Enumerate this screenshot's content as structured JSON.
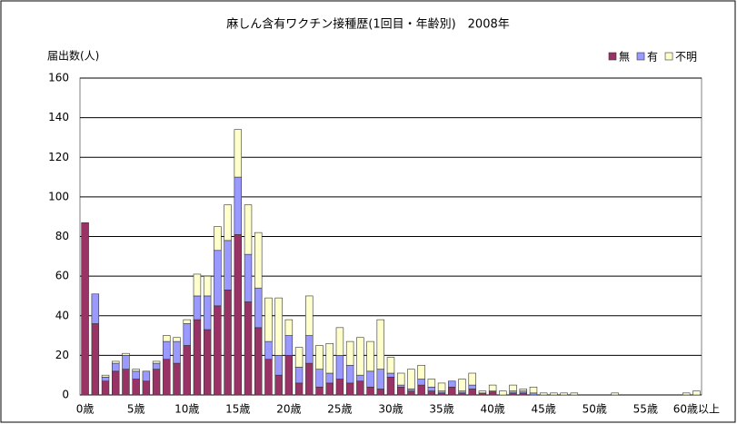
{
  "chart_data": {
    "type": "stacked-bar",
    "title": "麻しん含有ワクチン接種歴(1回目・年齢別)　2008年",
    "y_label": "届出数(人)",
    "categories": [
      "0歳",
      null,
      null,
      null,
      null,
      "5歳",
      null,
      null,
      null,
      null,
      "10歳",
      null,
      null,
      null,
      null,
      "15歳",
      null,
      null,
      null,
      null,
      "20歳",
      null,
      null,
      null,
      null,
      "25歳",
      null,
      null,
      null,
      null,
      "30歳",
      null,
      null,
      null,
      null,
      "35歳",
      null,
      null,
      null,
      null,
      "40歳",
      null,
      null,
      null,
      null,
      "45歳",
      null,
      null,
      null,
      null,
      "50歳",
      null,
      null,
      null,
      null,
      "55歳",
      null,
      null,
      null,
      null,
      "60歳以上"
    ],
    "series": [
      {
        "name": "無",
        "color": "#993366",
        "values": [
          87,
          36,
          7,
          12,
          13,
          8,
          7,
          13,
          18,
          16,
          25,
          38,
          33,
          45,
          53,
          81,
          47,
          34,
          18,
          10,
          20,
          6,
          16,
          4,
          6,
          8,
          6,
          7,
          4,
          3,
          9,
          4,
          2,
          5,
          2,
          1,
          4,
          1,
          3,
          1,
          2,
          0,
          1,
          1,
          0,
          0,
          0,
          0,
          0,
          0,
          0,
          0,
          0,
          0,
          0,
          0,
          0,
          0,
          0,
          0,
          0
        ]
      },
      {
        "name": "有",
        "color": "#9999ff",
        "values": [
          0,
          15,
          2,
          4,
          7,
          4,
          5,
          3,
          9,
          11,
          11,
          12,
          17,
          28,
          25,
          29,
          24,
          20,
          9,
          10,
          10,
          8,
          14,
          9,
          5,
          12,
          9,
          3,
          8,
          10,
          2,
          1,
          1,
          3,
          2,
          1,
          3,
          1,
          2,
          0,
          0,
          0,
          1,
          1,
          1,
          0,
          0,
          0,
          0,
          0,
          0,
          0,
          0,
          0,
          0,
          0,
          0,
          0,
          0,
          0,
          0
        ]
      },
      {
        "name": "不明",
        "color": "#ffffcc",
        "values": [
          0,
          0,
          1,
          1,
          1,
          1,
          0,
          1,
          3,
          2,
          2,
          11,
          10,
          12,
          18,
          24,
          25,
          28,
          22,
          29,
          8,
          10,
          20,
          12,
          15,
          14,
          12,
          19,
          15,
          25,
          8,
          6,
          10,
          7,
          4,
          4,
          0,
          6,
          6,
          1,
          3,
          2,
          3,
          1,
          3,
          1,
          1,
          1,
          1,
          0,
          0,
          0,
          1,
          0,
          0,
          0,
          0,
          0,
          0,
          1,
          2
        ]
      }
    ],
    "ylim": [
      0,
      160
    ],
    "yticks": [
      0,
      20,
      40,
      60,
      80,
      100,
      120,
      140,
      160
    ],
    "grid": true,
    "legend": "top-right"
  }
}
